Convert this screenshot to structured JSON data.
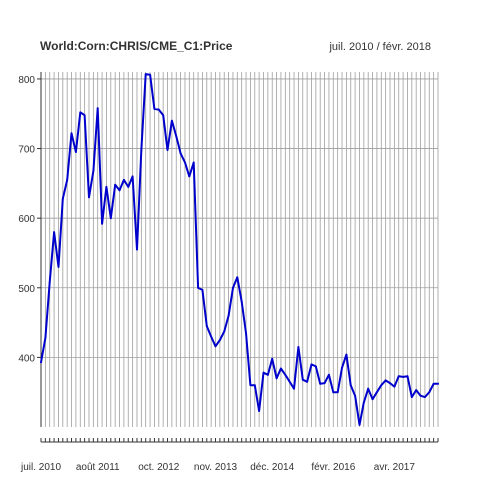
{
  "chart_data": {
    "type": "line",
    "title": "World:Corn:CHRIS/CME_C1:Price",
    "date_range": "juil. 2010 / févr. 2018",
    "xlabel": "",
    "ylabel": "",
    "grid": true,
    "x_range": [
      "2010-07",
      "2018-02"
    ],
    "ylim": [
      300,
      810
    ],
    "y_ticks": [
      400,
      500,
      600,
      700,
      800
    ],
    "x_tick_labels": [
      {
        "label": "juil. 2010",
        "date": "2010-07"
      },
      {
        "label": "août 2011",
        "date": "2011-08"
      },
      {
        "label": "oct. 2012",
        "date": "2012-10"
      },
      {
        "label": "nov. 2013",
        "date": "2013-11"
      },
      {
        "label": "déc. 2014",
        "date": "2014-12"
      },
      {
        "label": "févr. 2016",
        "date": "2016-02"
      },
      {
        "label": "avr. 2017",
        "date": "2017-04"
      }
    ],
    "colors": {
      "line": "#0000cc",
      "grid": "#9e9e9e",
      "axis": "#333333"
    },
    "series": [
      {
        "x": [
          "2010-07",
          "2010-08",
          "2010-09",
          "2010-10",
          "2010-11",
          "2010-12",
          "2011-01",
          "2011-02",
          "2011-03",
          "2011-04",
          "2011-05",
          "2011-06",
          "2011-07",
          "2011-08",
          "2011-09",
          "2011-10",
          "2011-11",
          "2011-12",
          "2012-01",
          "2012-02",
          "2012-03",
          "2012-04",
          "2012-05",
          "2012-06",
          "2012-07",
          "2012-08",
          "2012-09",
          "2012-10",
          "2012-11",
          "2012-12",
          "2013-01",
          "2013-02",
          "2013-03",
          "2013-04",
          "2013-05",
          "2013-06",
          "2013-07",
          "2013-08",
          "2013-09",
          "2013-10",
          "2013-11",
          "2013-12",
          "2014-01",
          "2014-02",
          "2014-03",
          "2014-04",
          "2014-05",
          "2014-06",
          "2014-07",
          "2014-08",
          "2014-09",
          "2014-10",
          "2014-11",
          "2014-12",
          "2015-01",
          "2015-02",
          "2015-03",
          "2015-04",
          "2015-05",
          "2015-06",
          "2015-07",
          "2015-08",
          "2015-09",
          "2015-10",
          "2015-11",
          "2015-12",
          "2016-01",
          "2016-02",
          "2016-03",
          "2016-04",
          "2016-05",
          "2016-06",
          "2016-07",
          "2016-08",
          "2016-09",
          "2016-10",
          "2016-11",
          "2016-12",
          "2017-01",
          "2017-02",
          "2017-03",
          "2017-04",
          "2017-05",
          "2017-06",
          "2017-07",
          "2017-08",
          "2017-09",
          "2017-10",
          "2017-11",
          "2017-12",
          "2018-01",
          "2018-02"
        ],
        "y": [
          393,
          428,
          508,
          580,
          530,
          628,
          655,
          722,
          695,
          752,
          748,
          630,
          668,
          758,
          592,
          645,
          600,
          648,
          640,
          655,
          645,
          660,
          555,
          697,
          807,
          806,
          757,
          756,
          748,
          698,
          740,
          718,
          693,
          680,
          660,
          680,
          500,
          497,
          445,
          430,
          416,
          425,
          437,
          460,
          500,
          515,
          480,
          435,
          360,
          360,
          323,
          378,
          375,
          398,
          370,
          384,
          375,
          365,
          355,
          415,
          368,
          365,
          390,
          387,
          362,
          363,
          375,
          350,
          350,
          385,
          404,
          360,
          345,
          303,
          335,
          355,
          340,
          350,
          360,
          367,
          363,
          358,
          373,
          372,
          373,
          343,
          353,
          345,
          343,
          350,
          362,
          362
        ]
      }
    ]
  }
}
